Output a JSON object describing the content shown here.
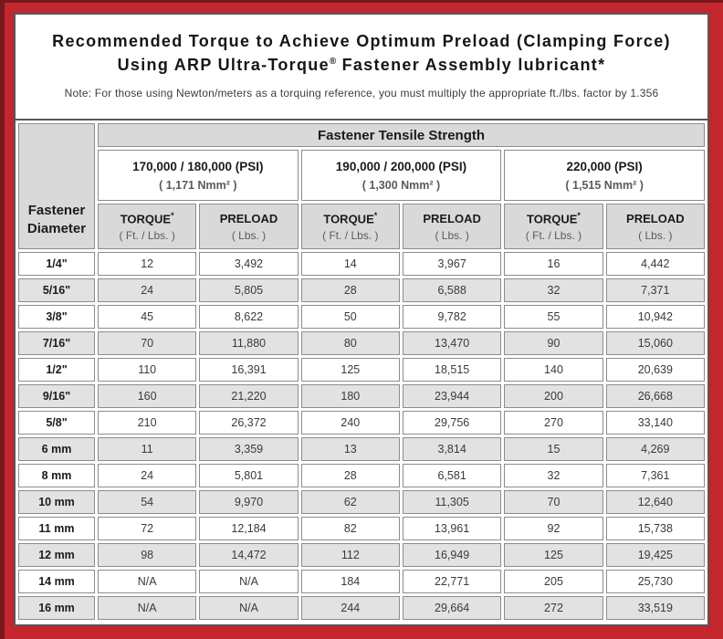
{
  "title": {
    "line1": "Recommended Torque to Achieve Optimum Preload (Clamping Force)",
    "line2_pre": "Using ARP Ultra-Torque",
    "line2_sup": "®",
    "line2_post": " Fastener Assembly lubricant*",
    "note": "Note: For those using Newton/meters as a torquing reference, you must multiply the appropriate ft./lbs. factor by 1.356"
  },
  "table": {
    "corner_line1": "Fastener",
    "corner_line2": "Diameter",
    "tensile_header": "Fastener Tensile Strength",
    "col_headers": {
      "torque_label": "TORQUE",
      "torque_sup": "*",
      "torque_sub": "( Ft. / Lbs. )",
      "preload_label": "PRELOAD",
      "preload_sub": "( Lbs. )"
    },
    "groups": [
      {
        "psi": "170,000 / 180,000 (PSI)",
        "nmm": "( 1,171 Nmm² )"
      },
      {
        "psi": "190,000 / 200,000 (PSI)",
        "nmm": "( 1,300 Nmm² )"
      },
      {
        "psi": "220,000 (PSI)",
        "nmm": "( 1,515 Nmm² )"
      }
    ],
    "rows": [
      {
        "diameter": "1/4\"",
        "values": [
          "12",
          "3,492",
          "14",
          "3,967",
          "16",
          "4,442"
        ]
      },
      {
        "diameter": "5/16\"",
        "values": [
          "24",
          "5,805",
          "28",
          "6,588",
          "32",
          "7,371"
        ]
      },
      {
        "diameter": "3/8\"",
        "values": [
          "45",
          "8,622",
          "50",
          "9,782",
          "55",
          "10,942"
        ]
      },
      {
        "diameter": "7/16\"",
        "values": [
          "70",
          "11,880",
          "80",
          "13,470",
          "90",
          "15,060"
        ]
      },
      {
        "diameter": "1/2\"",
        "values": [
          "110",
          "16,391",
          "125",
          "18,515",
          "140",
          "20,639"
        ]
      },
      {
        "diameter": "9/16\"",
        "values": [
          "160",
          "21,220",
          "180",
          "23,944",
          "200",
          "26,668"
        ]
      },
      {
        "diameter": "5/8\"",
        "values": [
          "210",
          "26,372",
          "240",
          "29,756",
          "270",
          "33,140"
        ]
      },
      {
        "diameter": "6 mm",
        "values": [
          "11",
          "3,359",
          "13",
          "3,814",
          "15",
          "4,269"
        ]
      },
      {
        "diameter": "8 mm",
        "values": [
          "24",
          "5,801",
          "28",
          "6,581",
          "32",
          "7,361"
        ]
      },
      {
        "diameter": "10 mm",
        "values": [
          "54",
          "9,970",
          "62",
          "11,305",
          "70",
          "12,640"
        ]
      },
      {
        "diameter": "11 mm",
        "values": [
          "72",
          "12,184",
          "82",
          "13,961",
          "92",
          "15,738"
        ]
      },
      {
        "diameter": "12 mm",
        "values": [
          "98",
          "14,472",
          "112",
          "16,949",
          "125",
          "19,425"
        ]
      },
      {
        "diameter": "14 mm",
        "values": [
          "N/A",
          "N/A",
          "184",
          "22,771",
          "205",
          "25,730"
        ]
      },
      {
        "diameter": "16 mm",
        "values": [
          "N/A",
          "N/A",
          "244",
          "29,664",
          "272",
          "33,519"
        ]
      }
    ]
  },
  "colors": {
    "frame_red": "#C3262C",
    "edge_maroon": "#74191E",
    "border_dark": "#57575A",
    "cell_border": "#8C8C8C",
    "header_gray": "#D9D9D9",
    "alt_row_gray": "#E2E2E2"
  }
}
